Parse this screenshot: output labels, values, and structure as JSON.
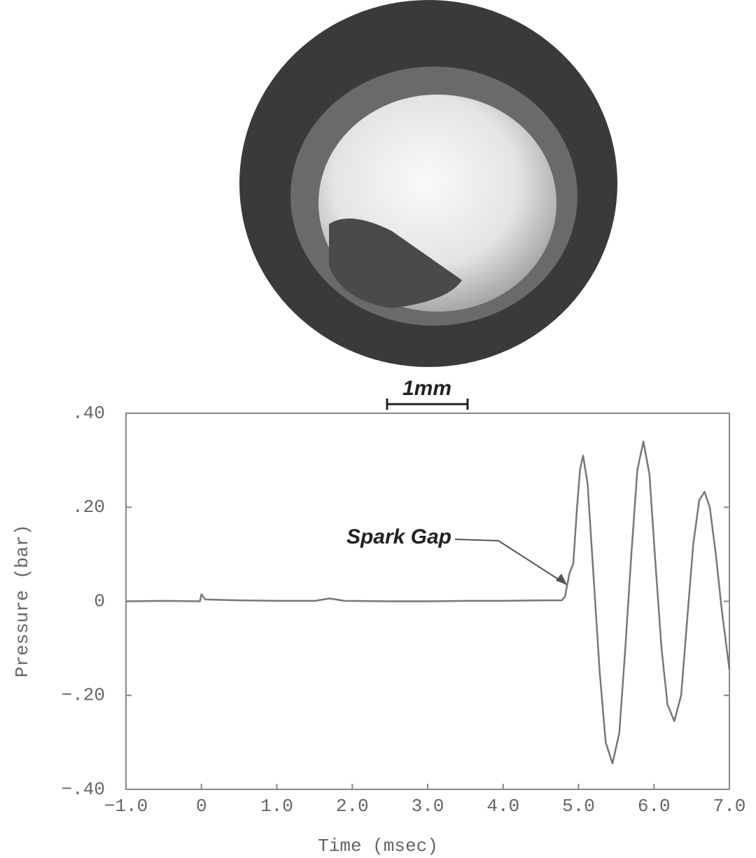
{
  "image": {
    "scale_bar_label": "1mm"
  },
  "chart_data": {
    "type": "line",
    "x_label": "Time (msec)",
    "y_label": "Pressure (bar)",
    "annotation": "Spark Gap",
    "xlim": [
      -1,
      7
    ],
    "ylim": [
      -0.4,
      0.4
    ],
    "xticks": [
      {
        "value": -1,
        "label": "−1.0"
      },
      0,
      {
        "value": 1,
        "label": "1.0"
      },
      {
        "value": 2,
        "label": "2.0"
      },
      {
        "value": 3,
        "label": "3.0"
      },
      {
        "value": 4,
        "label": "4.0"
      },
      {
        "value": 5,
        "label": "5.0"
      },
      {
        "value": 6,
        "label": "6.0"
      },
      {
        "value": 7,
        "label": "7.0"
      }
    ],
    "yticks": [
      {
        "value": -0.4,
        "label": "−.40"
      },
      {
        "value": -0.2,
        "label": "−.20"
      },
      0,
      {
        "value": 0.2,
        "label": ".20"
      },
      {
        "value": 0.4,
        "label": ".40"
      }
    ],
    "grid": false,
    "series": [
      {
        "name": "Pressure",
        "color": "#777777",
        "x": [
          -1.0,
          -0.5,
          -0.02,
          0,
          0.05,
          0.5,
          1.0,
          1.5,
          1.7,
          1.9,
          2.5,
          3.0,
          3.5,
          4.0,
          4.5,
          4.78,
          4.82,
          4.88,
          4.93,
          4.98,
          5.02,
          5.06,
          5.12,
          5.2,
          5.28,
          5.36,
          5.45,
          5.54,
          5.62,
          5.7,
          5.78,
          5.86,
          5.94,
          6.02,
          6.1,
          6.18,
          6.27,
          6.36,
          6.44,
          6.52,
          6.6,
          6.67,
          6.74,
          6.82,
          6.9,
          7.0
        ],
        "values": [
          0,
          0.001,
          0,
          0.015,
          0.004,
          0.002,
          0.001,
          0.001,
          0.006,
          0.001,
          0,
          0,
          0.001,
          0.001,
          0.002,
          0.002,
          0.01,
          0.06,
          0.08,
          0.2,
          0.28,
          0.31,
          0.25,
          0.05,
          -0.15,
          -0.3,
          -0.345,
          -0.28,
          -0.1,
          0.1,
          0.28,
          0.34,
          0.27,
          0.08,
          -0.1,
          -0.22,
          -0.255,
          -0.2,
          -0.04,
          0.12,
          0.215,
          0.233,
          0.2,
          0.1,
          -0.02,
          -0.145
        ]
      }
    ]
  }
}
